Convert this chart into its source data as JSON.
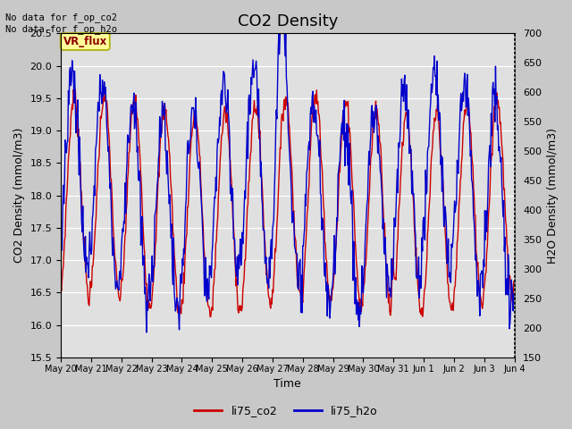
{
  "title": "CO2 Density",
  "xlabel": "Time",
  "ylabel_left": "CO2 Density (mmol/m3)",
  "ylabel_right": "H2O Density (mmol/m3)",
  "ylim_left": [
    15.5,
    20.5
  ],
  "ylim_right": [
    150,
    700
  ],
  "yticks_left": [
    15.5,
    16.0,
    16.5,
    17.0,
    17.5,
    18.0,
    18.5,
    19.0,
    19.5,
    20.0,
    20.5
  ],
  "yticks_right": [
    150,
    200,
    250,
    300,
    350,
    400,
    450,
    500,
    550,
    600,
    650,
    700
  ],
  "xtick_labels": [
    "May 20",
    "May 21",
    "May 22",
    "May 23",
    "May 24",
    "May 25",
    "May 26",
    "May 27",
    "May 28",
    "May 29",
    "May 30",
    "May 31",
    "Jun 1",
    "Jun 2",
    "Jun 3",
    "Jun 4"
  ],
  "color_co2": "#cc0000",
  "color_h2o": "#0000cc",
  "line_width": 1.0,
  "plot_bg_color": "#e0e0e0",
  "fig_bg_color": "#c8c8c8",
  "annotation_text": "No data for f_op_co2\nNo data for f_op_h2o",
  "vr_flux_label": "VR_flux",
  "legend_co2": "li75_co2",
  "legend_h2o": "li75_h2o",
  "title_fontsize": 13,
  "label_fontsize": 9,
  "tick_fontsize": 8
}
